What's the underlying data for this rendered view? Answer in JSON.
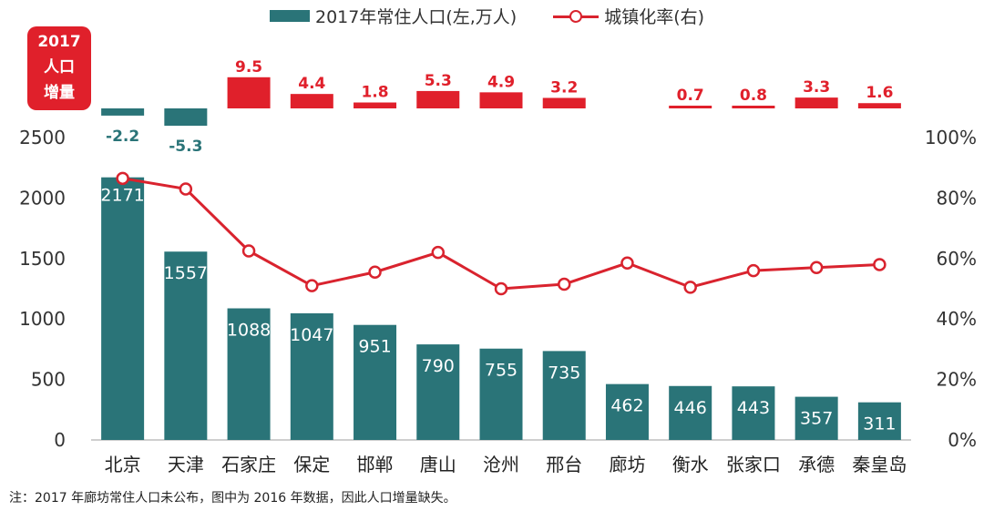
{
  "legend": {
    "population_label": "2017年常住人口(左,万人)",
    "urbanization_label": "城镇化率(右)"
  },
  "badge": {
    "line1": "2017",
    "line2": "人口",
    "line3": "增量"
  },
  "note": "注：2017 年廊坊常住人口未公布，图中为 2016 年数据，因此人口增量缺失。",
  "colors": {
    "bar": "#2a7478",
    "increase_positive": "#e0202b",
    "increase_negative": "#2a7478",
    "line": "#d9232e",
    "axis_text": "#333333"
  },
  "chart_data": {
    "type": "bar",
    "categories": [
      "北京",
      "天津",
      "石家庄",
      "保定",
      "邯郸",
      "唐山",
      "沧州",
      "邢台",
      "廊坊",
      "衡水",
      "张家口",
      "承德",
      "秦皇岛"
    ],
    "series": [
      {
        "name": "2017年常住人口(左,万人)",
        "type": "bar",
        "axis": "left",
        "values": [
          2171,
          1557,
          1088,
          1047,
          951,
          790,
          755,
          735,
          462,
          446,
          443,
          357,
          311
        ],
        "labels": [
          "2171",
          "1557",
          "1088",
          "1047",
          "951",
          "790",
          "755",
          "735",
          "462",
          "446",
          "443",
          "357",
          "311"
        ]
      },
      {
        "name": "城镇化率(右)",
        "type": "line",
        "axis": "right",
        "values": [
          86.5,
          83.0,
          62.5,
          51.0,
          55.5,
          62.0,
          50.0,
          51.5,
          58.5,
          50.5,
          56.0,
          57.0,
          58.0
        ]
      },
      {
        "name": "2017人口增量",
        "type": "bar",
        "values": [
          -2.2,
          -5.3,
          9.5,
          4.4,
          1.8,
          5.3,
          4.9,
          3.2,
          null,
          0.7,
          0.8,
          3.3,
          1.6
        ],
        "labels": [
          "-2.2",
          "-5.3",
          "9.5",
          "4.4",
          "1.8",
          "5.3",
          "4.9",
          "3.2",
          "",
          "0.7",
          "0.8",
          "3.3",
          "1.6"
        ]
      }
    ],
    "y_left": {
      "min": 0,
      "max": 2500,
      "ticks": [
        "0",
        "500",
        "1000",
        "1500",
        "2000",
        "2500"
      ]
    },
    "y_right": {
      "min": 0,
      "max": 100,
      "ticks": [
        "0%",
        "20%",
        "40%",
        "60%",
        "80%",
        "100%"
      ]
    },
    "grid": false
  }
}
